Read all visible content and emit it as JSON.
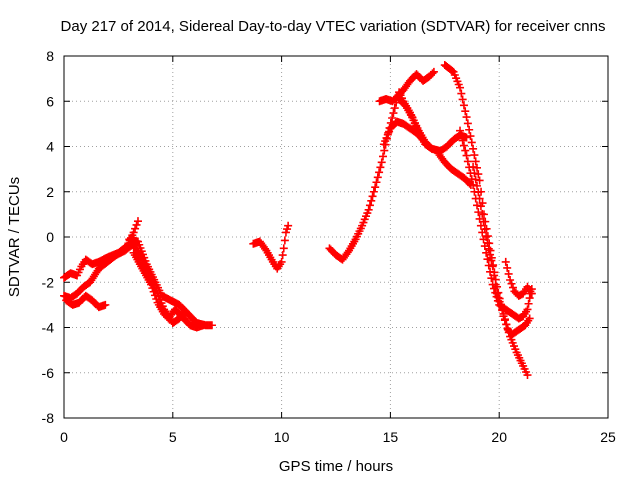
{
  "chart_data": {
    "type": "scatter",
    "title": "Day 217 of 2014, Sidereal Day-to-day VTEC variation (SDTVAR) for receiver cnns",
    "xlabel": "GPS time / hours",
    "ylabel": "SDTVAR / TECUs",
    "xlim": [
      0,
      25
    ],
    "ylim": [
      -8,
      8
    ],
    "xticks": [
      0,
      5,
      10,
      15,
      20,
      25
    ],
    "yticks": [
      -8,
      -6,
      -4,
      -2,
      0,
      2,
      4,
      6,
      8
    ],
    "x_tick_labels": [
      "0",
      "5",
      "10",
      "15",
      "20",
      "25"
    ],
    "y_tick_labels": [
      "-8",
      "-6",
      "-4",
      "-2",
      "0",
      "2",
      "4",
      "6",
      "8"
    ],
    "grid": true,
    "marker": "plus",
    "color": "#ff0000",
    "tracks": [
      [
        [
          0.0,
          -1.8
        ],
        [
          0.3,
          -1.6
        ],
        [
          0.6,
          -1.7
        ],
        [
          0.8,
          -1.3
        ],
        [
          1.0,
          -1.0
        ],
        [
          1.3,
          -1.2
        ],
        [
          1.6,
          -1.1
        ],
        [
          2.0,
          -0.9
        ],
        [
          2.5,
          -0.7
        ],
        [
          2.9,
          -0.4
        ],
        [
          3.2,
          0.2
        ],
        [
          3.4,
          0.7
        ]
      ],
      [
        [
          0.0,
          -2.6
        ],
        [
          0.3,
          -2.7
        ],
        [
          0.6,
          -2.5
        ],
        [
          0.9,
          -2.2
        ],
        [
          1.2,
          -2.0
        ],
        [
          1.6,
          -1.4
        ],
        [
          2.0,
          -1.1
        ],
        [
          2.4,
          -0.8
        ],
        [
          2.8,
          -0.6
        ],
        [
          3.2,
          -0.3
        ],
        [
          3.6,
          -1.0
        ],
        [
          4.0,
          -1.8
        ],
        [
          4.3,
          -2.5
        ],
        [
          4.6,
          -3.2
        ],
        [
          5.0,
          -3.8
        ],
        [
          5.3,
          -3.6
        ],
        [
          5.6,
          -3.3
        ]
      ],
      [
        [
          0.1,
          -2.8
        ],
        [
          0.4,
          -3.0
        ],
        [
          0.7,
          -2.9
        ],
        [
          1.0,
          -2.6
        ],
        [
          1.3,
          -2.8
        ],
        [
          1.6,
          -3.1
        ],
        [
          1.9,
          -3.0
        ]
      ],
      [
        [
          3.0,
          -0.1
        ],
        [
          3.4,
          -0.2
        ],
        [
          3.8,
          -1.2
        ],
        [
          4.2,
          -2.0
        ],
        [
          4.5,
          -2.6
        ],
        [
          4.9,
          -2.8
        ],
        [
          5.3,
          -3.0
        ],
        [
          5.7,
          -3.4
        ],
        [
          6.1,
          -3.8
        ],
        [
          6.5,
          -3.9
        ],
        [
          6.8,
          -3.9
        ]
      ],
      [
        [
          3.2,
          -0.7
        ],
        [
          3.6,
          -1.4
        ],
        [
          4.0,
          -2.1
        ],
        [
          4.3,
          -2.9
        ],
        [
          4.6,
          -3.4
        ],
        [
          4.8,
          -3.6
        ],
        [
          5.1,
          -3.2
        ],
        [
          5.4,
          -3.5
        ],
        [
          5.8,
          -3.9
        ],
        [
          6.1,
          -4.0
        ],
        [
          6.4,
          -3.9
        ]
      ],
      [
        [
          8.7,
          -0.3
        ],
        [
          9.0,
          -0.2
        ],
        [
          9.3,
          -0.6
        ],
        [
          9.6,
          -1.1
        ],
        [
          9.8,
          -1.4
        ],
        [
          10.0,
          -1.1
        ],
        [
          10.1,
          -0.5
        ],
        [
          10.2,
          0.2
        ],
        [
          10.3,
          0.5
        ]
      ],
      [
        [
          12.2,
          -0.5
        ],
        [
          12.5,
          -0.8
        ],
        [
          12.8,
          -1.0
        ],
        [
          13.1,
          -0.6
        ],
        [
          13.4,
          -0.1
        ],
        [
          13.7,
          0.5
        ],
        [
          14.0,
          1.2
        ],
        [
          14.3,
          2.2
        ],
        [
          14.6,
          3.3
        ],
        [
          14.9,
          4.6
        ],
        [
          15.2,
          5.7
        ],
        [
          15.4,
          6.4
        ],
        [
          15.6,
          6.0
        ],
        [
          15.9,
          5.5
        ],
        [
          16.3,
          4.7
        ],
        [
          16.6,
          4.2
        ],
        [
          16.9,
          3.9
        ]
      ],
      [
        [
          14.5,
          6.0
        ],
        [
          14.8,
          6.1
        ],
        [
          15.1,
          6.0
        ],
        [
          15.3,
          6.2
        ],
        [
          15.6,
          6.5
        ],
        [
          15.9,
          6.9
        ],
        [
          16.2,
          7.2
        ],
        [
          16.5,
          6.9
        ],
        [
          16.8,
          7.1
        ],
        [
          17.0,
          7.3
        ]
      ],
      [
        [
          14.7,
          4.1
        ],
        [
          15.0,
          4.8
        ],
        [
          15.3,
          5.1
        ],
        [
          15.6,
          5.0
        ],
        [
          15.9,
          4.8
        ],
        [
          16.2,
          4.6
        ],
        [
          16.5,
          4.3
        ]
      ],
      [
        [
          15.4,
          6.1
        ],
        [
          15.7,
          5.8
        ],
        [
          16.0,
          5.3
        ],
        [
          16.3,
          4.6
        ],
        [
          16.6,
          4.1
        ],
        [
          16.9,
          3.9
        ],
        [
          17.3,
          3.8
        ],
        [
          17.6,
          4.0
        ],
        [
          17.9,
          4.3
        ],
        [
          18.2,
          4.5
        ],
        [
          18.5,
          4.4
        ]
      ],
      [
        [
          17.2,
          3.7
        ],
        [
          17.5,
          3.3
        ],
        [
          17.8,
          3.0
        ],
        [
          18.1,
          2.8
        ],
        [
          18.4,
          2.6
        ],
        [
          18.7,
          2.3
        ]
      ],
      [
        [
          17.5,
          7.6
        ],
        [
          17.9,
          7.3
        ],
        [
          18.2,
          6.6
        ],
        [
          18.5,
          5.3
        ],
        [
          18.8,
          3.9
        ],
        [
          19.1,
          2.5
        ],
        [
          19.3,
          1.0
        ],
        [
          19.6,
          -0.6
        ],
        [
          19.9,
          -2.2
        ],
        [
          20.2,
          -3.5
        ],
        [
          20.5,
          -4.4
        ],
        [
          20.8,
          -5.1
        ],
        [
          21.1,
          -5.7
        ],
        [
          21.3,
          -6.1
        ]
      ],
      [
        [
          18.2,
          4.7
        ],
        [
          18.5,
          3.6
        ],
        [
          18.8,
          2.3
        ],
        [
          19.1,
          0.8
        ],
        [
          19.4,
          -0.7
        ],
        [
          19.7,
          -2.1
        ],
        [
          20.0,
          -3.0
        ],
        [
          20.3,
          -3.2
        ],
        [
          20.6,
          -3.4
        ],
        [
          20.9,
          -3.6
        ],
        [
          21.1,
          -3.5
        ],
        [
          21.3,
          -3.2
        ],
        [
          21.4,
          -2.7
        ],
        [
          21.5,
          -2.3
        ]
      ],
      [
        [
          18.8,
          3.1
        ],
        [
          19.1,
          1.7
        ],
        [
          19.4,
          0.0
        ],
        [
          19.7,
          -1.3
        ],
        [
          19.9,
          -2.5
        ],
        [
          20.2,
          -3.4
        ],
        [
          20.4,
          -4.1
        ],
        [
          20.6,
          -4.3
        ],
        [
          20.9,
          -4.1
        ],
        [
          21.2,
          -3.9
        ],
        [
          21.4,
          -3.6
        ]
      ],
      [
        [
          20.3,
          -1.1
        ],
        [
          20.5,
          -1.9
        ],
        [
          20.7,
          -2.4
        ],
        [
          20.9,
          -2.6
        ],
        [
          21.1,
          -2.5
        ],
        [
          21.3,
          -2.2
        ],
        [
          21.5,
          -2.5
        ]
      ]
    ]
  }
}
